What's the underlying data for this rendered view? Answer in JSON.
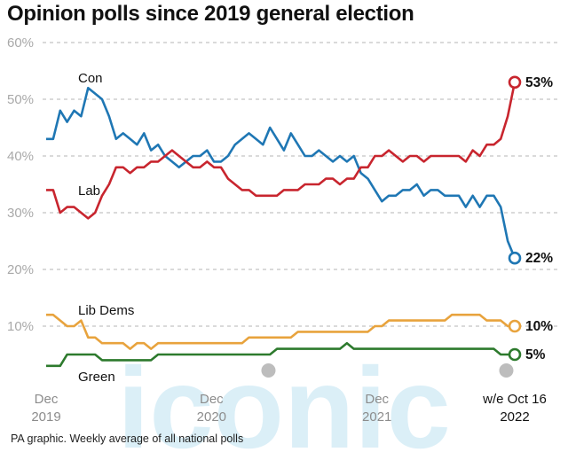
{
  "chart_data": {
    "type": "line",
    "title": "Opinion polls since 2019 general election",
    "source": "PA graphic. Weekly average of all national polls",
    "watermark": "iconic",
    "ylim": [
      0,
      60
    ],
    "yticks": [
      "60%",
      "50%",
      "40%",
      "30%",
      "20%",
      "10%"
    ],
    "ytick_values": [
      60,
      50,
      40,
      30,
      20,
      10
    ],
    "grid": true,
    "xlim": [
      "2019-12",
      "2022-10"
    ],
    "xticks": [
      {
        "x": "2019-12",
        "line1": "Dec",
        "line2": "2019"
      },
      {
        "x": "2020-12",
        "line1": "Dec",
        "line2": "2020"
      },
      {
        "x": "2021-12",
        "line1": "Dec",
        "line2": "2021"
      },
      {
        "x": "2022-10",
        "line1": "w/e Oct 16",
        "line2": "2022"
      }
    ],
    "series": [
      {
        "name": "Con",
        "color": "#1f77b4",
        "end_label": "22%",
        "points": [
          [
            "2019-12",
            43
          ],
          [
            "2020-01",
            43
          ],
          [
            "2020-01",
            48
          ],
          [
            "2020-02",
            46
          ],
          [
            "2020-02",
            48
          ],
          [
            "2020-03",
            47
          ],
          [
            "2020-03",
            52
          ],
          [
            "2020-04",
            51
          ],
          [
            "2020-04",
            50
          ],
          [
            "2020-05",
            47
          ],
          [
            "2020-05",
            43
          ],
          [
            "2020-06",
            44
          ],
          [
            "2020-06",
            43
          ],
          [
            "2020-07",
            42
          ],
          [
            "2020-07",
            44
          ],
          [
            "2020-08",
            41
          ],
          [
            "2020-08",
            42
          ],
          [
            "2020-09",
            40
          ],
          [
            "2020-09",
            39
          ],
          [
            "2020-10",
            38
          ],
          [
            "2020-10",
            39
          ],
          [
            "2020-11",
            40
          ],
          [
            "2020-11",
            40
          ],
          [
            "2020-12",
            41
          ],
          [
            "2020-12",
            39
          ],
          [
            "2021-01",
            39
          ],
          [
            "2021-01",
            40
          ],
          [
            "2021-02",
            42
          ],
          [
            "2021-02",
            43
          ],
          [
            "2021-03",
            44
          ],
          [
            "2021-03",
            43
          ],
          [
            "2021-04",
            42
          ],
          [
            "2021-04",
            45
          ],
          [
            "2021-05",
            43
          ],
          [
            "2021-05",
            41
          ],
          [
            "2021-06",
            44
          ],
          [
            "2021-06",
            42
          ],
          [
            "2021-07",
            40
          ],
          [
            "2021-07",
            40
          ],
          [
            "2021-08",
            41
          ],
          [
            "2021-08",
            40
          ],
          [
            "2021-09",
            39
          ],
          [
            "2021-09",
            40
          ],
          [
            "2021-10",
            39
          ],
          [
            "2021-10",
            40
          ],
          [
            "2021-11",
            37
          ],
          [
            "2021-11",
            36
          ],
          [
            "2021-12",
            34
          ],
          [
            "2021-12",
            32
          ],
          [
            "2022-01",
            33
          ],
          [
            "2022-01",
            33
          ],
          [
            "2022-02",
            34
          ],
          [
            "2022-02",
            34
          ],
          [
            "2022-03",
            35
          ],
          [
            "2022-03",
            33
          ],
          [
            "2022-04",
            34
          ],
          [
            "2022-04",
            34
          ],
          [
            "2022-05",
            33
          ],
          [
            "2022-05",
            33
          ],
          [
            "2022-06",
            33
          ],
          [
            "2022-06",
            31
          ],
          [
            "2022-07",
            33
          ],
          [
            "2022-07",
            31
          ],
          [
            "2022-08",
            33
          ],
          [
            "2022-08",
            33
          ],
          [
            "2022-09",
            31
          ],
          [
            "2022-09",
            25
          ],
          [
            "2022-10",
            22
          ]
        ]
      },
      {
        "name": "Lab",
        "color": "#c8252e",
        "end_label": "53%",
        "points": [
          [
            "2019-12",
            34
          ],
          [
            "2020-01",
            34
          ],
          [
            "2020-01",
            30
          ],
          [
            "2020-02",
            31
          ],
          [
            "2020-02",
            31
          ],
          [
            "2020-03",
            30
          ],
          [
            "2020-03",
            29
          ],
          [
            "2020-04",
            30
          ],
          [
            "2020-04",
            33
          ],
          [
            "2020-05",
            35
          ],
          [
            "2020-05",
            38
          ],
          [
            "2020-06",
            38
          ],
          [
            "2020-06",
            37
          ],
          [
            "2020-07",
            38
          ],
          [
            "2020-07",
            38
          ],
          [
            "2020-08",
            39
          ],
          [
            "2020-08",
            39
          ],
          [
            "2020-09",
            40
          ],
          [
            "2020-09",
            41
          ],
          [
            "2020-10",
            40
          ],
          [
            "2020-10",
            39
          ],
          [
            "2020-11",
            38
          ],
          [
            "2020-11",
            38
          ],
          [
            "2020-12",
            39
          ],
          [
            "2020-12",
            38
          ],
          [
            "2021-01",
            38
          ],
          [
            "2021-01",
            36
          ],
          [
            "2021-02",
            35
          ],
          [
            "2021-02",
            34
          ],
          [
            "2021-03",
            34
          ],
          [
            "2021-03",
            33
          ],
          [
            "2021-04",
            33
          ],
          [
            "2021-04",
            33
          ],
          [
            "2021-05",
            33
          ],
          [
            "2021-05",
            34
          ],
          [
            "2021-06",
            34
          ],
          [
            "2021-06",
            34
          ],
          [
            "2021-07",
            35
          ],
          [
            "2021-07",
            35
          ],
          [
            "2021-08",
            35
          ],
          [
            "2021-08",
            36
          ],
          [
            "2021-09",
            36
          ],
          [
            "2021-09",
            35
          ],
          [
            "2021-10",
            36
          ],
          [
            "2021-10",
            36
          ],
          [
            "2021-11",
            38
          ],
          [
            "2021-11",
            38
          ],
          [
            "2021-12",
            40
          ],
          [
            "2021-12",
            40
          ],
          [
            "2022-01",
            41
          ],
          [
            "2022-01",
            40
          ],
          [
            "2022-02",
            39
          ],
          [
            "2022-02",
            40
          ],
          [
            "2022-03",
            40
          ],
          [
            "2022-03",
            39
          ],
          [
            "2022-04",
            40
          ],
          [
            "2022-04",
            40
          ],
          [
            "2022-05",
            40
          ],
          [
            "2022-05",
            40
          ],
          [
            "2022-06",
            40
          ],
          [
            "2022-06",
            39
          ],
          [
            "2022-07",
            41
          ],
          [
            "2022-07",
            40
          ],
          [
            "2022-08",
            42
          ],
          [
            "2022-08",
            42
          ],
          [
            "2022-09",
            43
          ],
          [
            "2022-09",
            47
          ],
          [
            "2022-10",
            53
          ]
        ]
      },
      {
        "name": "Lib Dems",
        "color": "#e8a33d",
        "end_label": "10%",
        "points": [
          [
            "2019-12",
            12
          ],
          [
            "2020-01",
            12
          ],
          [
            "2020-01",
            11
          ],
          [
            "2020-02",
            10
          ],
          [
            "2020-02",
            10
          ],
          [
            "2020-03",
            11
          ],
          [
            "2020-03",
            8
          ],
          [
            "2020-04",
            8
          ],
          [
            "2020-04",
            7
          ],
          [
            "2020-05",
            7
          ],
          [
            "2020-05",
            7
          ],
          [
            "2020-06",
            7
          ],
          [
            "2020-06",
            6
          ],
          [
            "2020-07",
            7
          ],
          [
            "2020-07",
            7
          ],
          [
            "2020-08",
            6
          ],
          [
            "2020-08",
            7
          ],
          [
            "2020-09",
            7
          ],
          [
            "2020-09",
            7
          ],
          [
            "2020-10",
            7
          ],
          [
            "2020-10",
            7
          ],
          [
            "2020-11",
            7
          ],
          [
            "2020-11",
            7
          ],
          [
            "2020-12",
            7
          ],
          [
            "2020-12",
            7
          ],
          [
            "2021-01",
            7
          ],
          [
            "2021-01",
            7
          ],
          [
            "2021-02",
            7
          ],
          [
            "2021-02",
            7
          ],
          [
            "2021-03",
            8
          ],
          [
            "2021-03",
            8
          ],
          [
            "2021-04",
            8
          ],
          [
            "2021-04",
            8
          ],
          [
            "2021-05",
            8
          ],
          [
            "2021-05",
            8
          ],
          [
            "2021-06",
            8
          ],
          [
            "2021-06",
            9
          ],
          [
            "2021-07",
            9
          ],
          [
            "2021-07",
            9
          ],
          [
            "2021-08",
            9
          ],
          [
            "2021-08",
            9
          ],
          [
            "2021-09",
            9
          ],
          [
            "2021-09",
            9
          ],
          [
            "2021-10",
            9
          ],
          [
            "2021-10",
            9
          ],
          [
            "2021-11",
            9
          ],
          [
            "2021-11",
            9
          ],
          [
            "2021-12",
            10
          ],
          [
            "2021-12",
            10
          ],
          [
            "2022-01",
            11
          ],
          [
            "2022-01",
            11
          ],
          [
            "2022-02",
            11
          ],
          [
            "2022-02",
            11
          ],
          [
            "2022-03",
            11
          ],
          [
            "2022-03",
            11
          ],
          [
            "2022-04",
            11
          ],
          [
            "2022-04",
            11
          ],
          [
            "2022-05",
            11
          ],
          [
            "2022-05",
            12
          ],
          [
            "2022-06",
            12
          ],
          [
            "2022-06",
            12
          ],
          [
            "2022-07",
            12
          ],
          [
            "2022-07",
            12
          ],
          [
            "2022-08",
            11
          ],
          [
            "2022-08",
            11
          ],
          [
            "2022-09",
            11
          ],
          [
            "2022-09",
            10
          ],
          [
            "2022-10",
            10
          ]
        ]
      },
      {
        "name": "Green",
        "color": "#2d7a2d",
        "end_label": "5%",
        "points": [
          [
            "2019-12",
            3
          ],
          [
            "2020-01",
            3
          ],
          [
            "2020-01",
            3
          ],
          [
            "2020-02",
            5
          ],
          [
            "2020-02",
            5
          ],
          [
            "2020-03",
            5
          ],
          [
            "2020-03",
            5
          ],
          [
            "2020-04",
            5
          ],
          [
            "2020-04",
            4
          ],
          [
            "2020-05",
            4
          ],
          [
            "2020-05",
            4
          ],
          [
            "2020-06",
            4
          ],
          [
            "2020-06",
            4
          ],
          [
            "2020-07",
            4
          ],
          [
            "2020-07",
            4
          ],
          [
            "2020-08",
            4
          ],
          [
            "2020-08",
            5
          ],
          [
            "2020-09",
            5
          ],
          [
            "2020-09",
            5
          ],
          [
            "2020-10",
            5
          ],
          [
            "2020-10",
            5
          ],
          [
            "2020-11",
            5
          ],
          [
            "2020-11",
            5
          ],
          [
            "2020-12",
            5
          ],
          [
            "2020-12",
            5
          ],
          [
            "2021-01",
            5
          ],
          [
            "2021-01",
            5
          ],
          [
            "2021-02",
            5
          ],
          [
            "2021-02",
            5
          ],
          [
            "2021-03",
            5
          ],
          [
            "2021-03",
            5
          ],
          [
            "2021-04",
            5
          ],
          [
            "2021-04",
            5
          ],
          [
            "2021-05",
            6
          ],
          [
            "2021-05",
            6
          ],
          [
            "2021-06",
            6
          ],
          [
            "2021-06",
            6
          ],
          [
            "2021-07",
            6
          ],
          [
            "2021-07",
            6
          ],
          [
            "2021-08",
            6
          ],
          [
            "2021-08",
            6
          ],
          [
            "2021-09",
            6
          ],
          [
            "2021-09",
            6
          ],
          [
            "2021-10",
            7
          ],
          [
            "2021-10",
            6
          ],
          [
            "2021-11",
            6
          ],
          [
            "2021-11",
            6
          ],
          [
            "2021-12",
            6
          ],
          [
            "2021-12",
            6
          ],
          [
            "2022-01",
            6
          ],
          [
            "2022-01",
            6
          ],
          [
            "2022-02",
            6
          ],
          [
            "2022-02",
            6
          ],
          [
            "2022-03",
            6
          ],
          [
            "2022-03",
            6
          ],
          [
            "2022-04",
            6
          ],
          [
            "2022-04",
            6
          ],
          [
            "2022-05",
            6
          ],
          [
            "2022-05",
            6
          ],
          [
            "2022-06",
            6
          ],
          [
            "2022-06",
            6
          ],
          [
            "2022-07",
            6
          ],
          [
            "2022-07",
            6
          ],
          [
            "2022-08",
            6
          ],
          [
            "2022-08",
            6
          ],
          [
            "2022-09",
            5
          ],
          [
            "2022-09",
            5
          ],
          [
            "2022-10",
            5
          ]
        ]
      }
    ]
  }
}
